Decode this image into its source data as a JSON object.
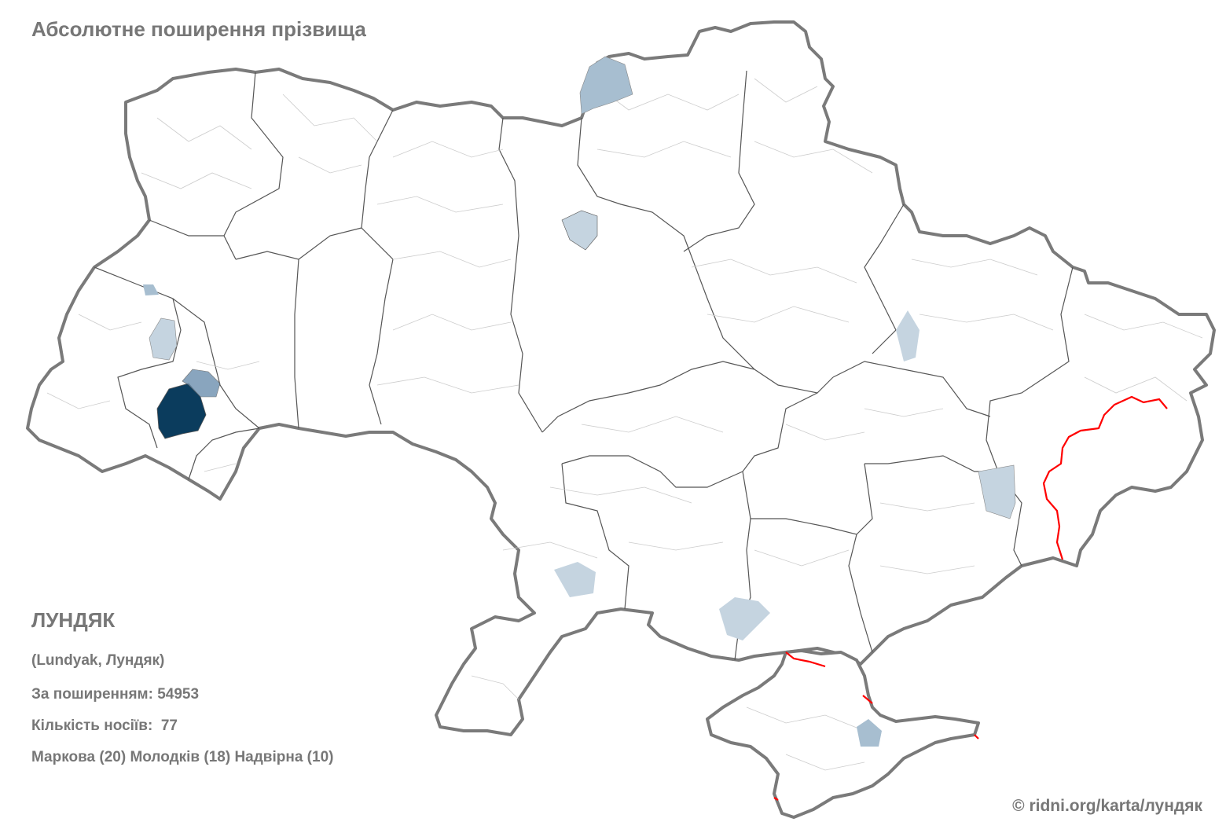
{
  "title": "Абсолютне поширення прізвища",
  "surname": {
    "name": "ЛУНДЯК",
    "variants": "(Lundyak, Лундяк)",
    "rank_label": "За поширенням:",
    "rank_value": "54953",
    "count_label": "Кількість носіїв:",
    "count_value": "77",
    "top_places": "Маркова (20) Молодків (18) Надвірна (10)"
  },
  "copyright": "© ridni.org/karta/лундяк",
  "colors": {
    "border": "#7a7a7a",
    "district_line": "#cccccc",
    "occupation_line": "#ff0000",
    "highest": "#0b3c5d",
    "high": "#6c8fae",
    "medium": "#a7bed0",
    "low": "#c5d4e0"
  }
}
